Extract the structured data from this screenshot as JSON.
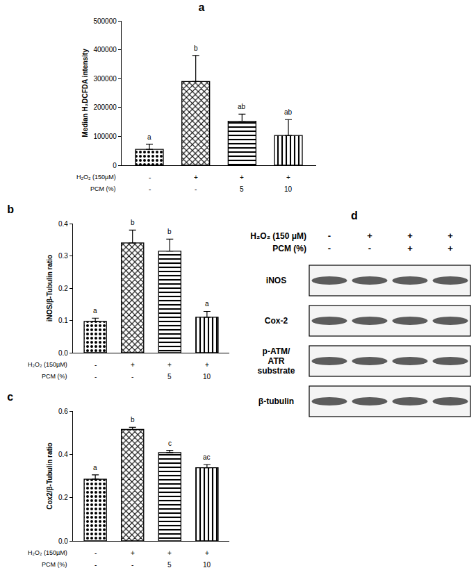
{
  "chart_data": [
    {
      "type": "bar",
      "title": "a",
      "y_label": "Median H₂DCFDA intensity",
      "category_rows": [
        "H₂O₂ (150µM)",
        "PCM (%)"
      ],
      "categories": [
        [
          "-",
          "-"
        ],
        [
          "+",
          "-"
        ],
        [
          "+",
          "5"
        ],
        [
          "+",
          "10"
        ]
      ],
      "values": [
        55000,
        290000,
        152000,
        103000
      ],
      "errors": [
        18000,
        90000,
        25000,
        55000
      ],
      "annotations": [
        "a",
        "b",
        "ab",
        "ab"
      ],
      "color": "#000000",
      "ylim": [
        0,
        500000
      ],
      "yticks": [
        0,
        100000,
        200000,
        300000,
        400000,
        500000
      ],
      "grid": false
    },
    {
      "type": "bar",
      "title": "b",
      "y_label": "iNOS/β-Tubulin ratio",
      "category_rows": [
        "H₂O₂ (150µM)",
        "PCM (%)"
      ],
      "categories": [
        [
          "-",
          "-"
        ],
        [
          "+",
          "-"
        ],
        [
          "+",
          "5"
        ],
        [
          "+",
          "10"
        ]
      ],
      "values": [
        0.097,
        0.34,
        0.315,
        0.11
      ],
      "errors": [
        0.01,
        0.04,
        0.037,
        0.018
      ],
      "annotations": [
        "a",
        "b",
        "b",
        "a"
      ],
      "color": "#000000",
      "ylim": [
        0,
        0.4
      ],
      "yticks": [
        {
          "value": 0,
          "label": "0.0"
        },
        0.1,
        0.2,
        0.3,
        0.4
      ],
      "grid": false
    },
    {
      "type": "bar",
      "title": "c",
      "y_label": "Cox2/β-Tubulin ratio",
      "category_rows": [
        "H₂O₂ (150µM)",
        "PCM (%)"
      ],
      "categories": [
        [
          "-",
          "-"
        ],
        [
          "+",
          "-"
        ],
        [
          "+",
          "5"
        ],
        [
          "+",
          "10"
        ]
      ],
      "values": [
        0.285,
        0.515,
        0.408,
        0.338
      ],
      "errors": [
        0.02,
        0.01,
        0.01,
        0.015
      ],
      "annotations": [
        "a",
        "b",
        "c",
        "ac"
      ],
      "color": "#000000",
      "ylim": [
        0,
        0.6
      ],
      "yticks": [
        {
          "value": 0,
          "label": "0.0"
        },
        0.2,
        0.4,
        0.6
      ],
      "grid": false
    }
  ],
  "blot": {
    "title": "d",
    "rows": [
      {
        "label": "H₂O₂ (150 μM)",
        "values": [
          "-",
          "+",
          "+",
          "+"
        ]
      },
      {
        "label": "PCM (%)",
        "values": [
          "-",
          "-",
          "+",
          "+"
        ]
      }
    ],
    "bands": [
      [
        "iNOS"
      ],
      [
        "Cox-2"
      ],
      [
        "p-ATM/",
        "ATR",
        "substrate"
      ],
      [
        "β-tubulin"
      ]
    ]
  }
}
